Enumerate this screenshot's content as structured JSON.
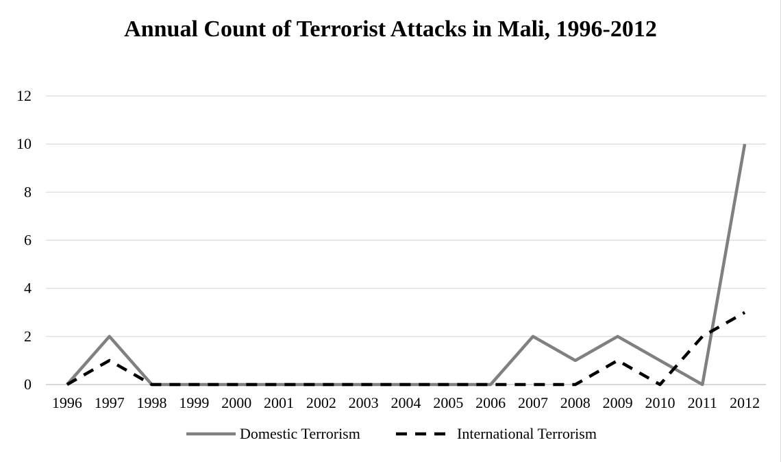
{
  "chart_data": {
    "type": "line",
    "title": "Annual Count of Terrorist Attacks in Mali, 1996-2012",
    "xlabel": "",
    "ylabel": "",
    "categories": [
      "1996",
      "1997",
      "1998",
      "1999",
      "2000",
      "2001",
      "2002",
      "2003",
      "2004",
      "2005",
      "2006",
      "2007",
      "2008",
      "2009",
      "2010",
      "2011",
      "2012"
    ],
    "series": [
      {
        "name": "Domestic Terrorism",
        "values": [
          0,
          2,
          0,
          0,
          0,
          0,
          0,
          0,
          0,
          0,
          0,
          2,
          1,
          2,
          1,
          0,
          10
        ],
        "color": "#808080",
        "style": "solid"
      },
      {
        "name": "International Terrorism",
        "values": [
          0,
          1,
          0,
          0,
          0,
          0,
          0,
          0,
          0,
          0,
          0,
          0,
          0,
          1,
          0,
          2,
          3
        ],
        "color": "#000000",
        "style": "dashed"
      }
    ],
    "ylim": [
      0,
      12
    ],
    "yticks": [
      0,
      2,
      4,
      6,
      8,
      10,
      12
    ],
    "grid": "horizontal",
    "legend": "bottom"
  }
}
